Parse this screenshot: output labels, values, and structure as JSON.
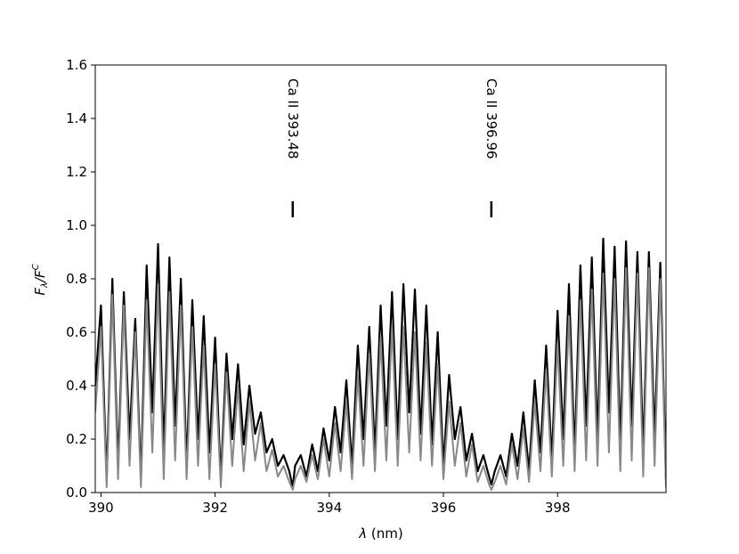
{
  "chart_data": {
    "type": "line",
    "title": "",
    "xlabel_italic": "λ",
    "xlabel_rest": " (nm)",
    "ylabel_f": "F",
    "ylabel_sub": "λ",
    "ylabel_slash": "/F",
    "ylabel_sup": "C",
    "xlim": [
      389.9,
      399.9
    ],
    "ylim": [
      0.0,
      1.6
    ],
    "xticks": [
      390,
      392,
      394,
      396,
      398
    ],
    "xtick_labels": [
      "390",
      "392",
      "394",
      "396",
      "398"
    ],
    "yticks": [
      0.0,
      0.2,
      0.4,
      0.6,
      0.8,
      1.0,
      1.2,
      1.4,
      1.6
    ],
    "ytick_labels": [
      "0.0",
      "0.2",
      "0.4",
      "0.6",
      "0.8",
      "1.0",
      "1.2",
      "1.4",
      "1.6"
    ],
    "grid": false,
    "legend": "none",
    "line_markers": [
      {
        "label": "Ca II 393.48",
        "x": 393.36,
        "y_from": 1.03,
        "y_to": 1.09,
        "label_y": 1.55
      },
      {
        "label": "Ca II 396.96",
        "x": 396.84,
        "y_from": 1.03,
        "y_to": 1.09,
        "label_y": 1.55
      }
    ],
    "series": [
      {
        "color": "#000000",
        "x": [
          389.9,
          390.0,
          390.1,
          390.2,
          390.3,
          390.4,
          390.5,
          390.6,
          390.7,
          390.8,
          390.9,
          391.0,
          391.1,
          391.2,
          391.3,
          391.4,
          391.5,
          391.6,
          391.7,
          391.8,
          391.9,
          392.0,
          392.1,
          392.2,
          392.3,
          392.4,
          392.5,
          392.6,
          392.7,
          392.8,
          392.9,
          393.0,
          393.1,
          393.2,
          393.3,
          393.36,
          393.4,
          393.5,
          393.6,
          393.7,
          393.8,
          393.9,
          394.0,
          394.1,
          394.2,
          394.3,
          394.4,
          394.5,
          394.6,
          394.7,
          394.8,
          394.9,
          395.0,
          395.1,
          395.2,
          395.3,
          395.4,
          395.5,
          395.6,
          395.7,
          395.8,
          395.9,
          396.0,
          396.1,
          396.2,
          396.3,
          396.4,
          396.5,
          396.6,
          396.7,
          396.8,
          396.84,
          396.9,
          397.0,
          397.1,
          397.2,
          397.3,
          397.4,
          397.5,
          397.6,
          397.7,
          397.8,
          397.9,
          398.0,
          398.1,
          398.2,
          398.3,
          398.4,
          398.5,
          398.6,
          398.7,
          398.8,
          398.9,
          399.0,
          399.1,
          399.2,
          399.3,
          399.4,
          399.5,
          399.6,
          399.7,
          399.8,
          399.9
        ],
        "y": [
          0.4,
          0.7,
          0.05,
          0.8,
          0.1,
          0.75,
          0.2,
          0.65,
          0.05,
          0.85,
          0.3,
          0.93,
          0.15,
          0.88,
          0.25,
          0.8,
          0.1,
          0.72,
          0.2,
          0.66,
          0.15,
          0.58,
          0.05,
          0.52,
          0.2,
          0.48,
          0.18,
          0.4,
          0.22,
          0.3,
          0.15,
          0.2,
          0.1,
          0.14,
          0.08,
          0.02,
          0.1,
          0.14,
          0.06,
          0.18,
          0.08,
          0.24,
          0.12,
          0.32,
          0.15,
          0.42,
          0.1,
          0.55,
          0.2,
          0.62,
          0.15,
          0.7,
          0.25,
          0.75,
          0.2,
          0.78,
          0.3,
          0.76,
          0.22,
          0.7,
          0.18,
          0.6,
          0.1,
          0.44,
          0.2,
          0.32,
          0.12,
          0.22,
          0.08,
          0.14,
          0.06,
          0.03,
          0.08,
          0.14,
          0.06,
          0.22,
          0.1,
          0.3,
          0.08,
          0.42,
          0.15,
          0.55,
          0.12,
          0.68,
          0.2,
          0.78,
          0.15,
          0.85,
          0.25,
          0.88,
          0.2,
          0.95,
          0.3,
          0.92,
          0.18,
          0.94,
          0.25,
          0.9,
          0.15,
          0.9,
          0.2,
          0.86,
          0.05
        ]
      },
      {
        "color": "#888888",
        "x": [
          389.9,
          390.0,
          390.1,
          390.2,
          390.3,
          390.4,
          390.5,
          390.6,
          390.7,
          390.8,
          390.9,
          391.0,
          391.1,
          391.2,
          391.3,
          391.4,
          391.5,
          391.6,
          391.7,
          391.8,
          391.9,
          392.0,
          392.1,
          392.2,
          392.3,
          392.4,
          392.5,
          392.6,
          392.7,
          392.8,
          392.9,
          393.0,
          393.1,
          393.2,
          393.3,
          393.36,
          393.4,
          393.5,
          393.6,
          393.7,
          393.8,
          393.9,
          394.0,
          394.1,
          394.2,
          394.3,
          394.4,
          394.5,
          394.6,
          394.7,
          394.8,
          394.9,
          395.0,
          395.1,
          395.2,
          395.3,
          395.4,
          395.5,
          395.6,
          395.7,
          395.8,
          395.9,
          396.0,
          396.1,
          396.2,
          396.3,
          396.4,
          396.5,
          396.6,
          396.7,
          396.8,
          396.84,
          396.9,
          397.0,
          397.1,
          397.2,
          397.3,
          397.4,
          397.5,
          397.6,
          397.7,
          397.8,
          397.9,
          398.0,
          398.1,
          398.2,
          398.3,
          398.4,
          398.5,
          398.6,
          398.7,
          398.8,
          398.9,
          399.0,
          399.1,
          399.2,
          399.3,
          399.4,
          399.5,
          399.6,
          399.7,
          399.8,
          399.9
        ],
        "y": [
          0.3,
          0.62,
          0.02,
          0.74,
          0.05,
          0.7,
          0.1,
          0.6,
          0.02,
          0.72,
          0.15,
          0.78,
          0.05,
          0.75,
          0.12,
          0.7,
          0.05,
          0.62,
          0.1,
          0.55,
          0.05,
          0.48,
          0.02,
          0.45,
          0.1,
          0.4,
          0.08,
          0.34,
          0.12,
          0.26,
          0.08,
          0.16,
          0.06,
          0.1,
          0.04,
          0.01,
          0.05,
          0.1,
          0.04,
          0.14,
          0.05,
          0.2,
          0.06,
          0.26,
          0.08,
          0.34,
          0.05,
          0.44,
          0.1,
          0.52,
          0.08,
          0.58,
          0.12,
          0.62,
          0.1,
          0.62,
          0.15,
          0.6,
          0.12,
          0.56,
          0.1,
          0.48,
          0.05,
          0.34,
          0.1,
          0.26,
          0.06,
          0.18,
          0.04,
          0.1,
          0.03,
          0.01,
          0.04,
          0.1,
          0.03,
          0.18,
          0.05,
          0.24,
          0.04,
          0.34,
          0.08,
          0.46,
          0.06,
          0.56,
          0.1,
          0.66,
          0.08,
          0.72,
          0.12,
          0.76,
          0.1,
          0.82,
          0.15,
          0.8,
          0.08,
          0.84,
          0.12,
          0.82,
          0.06,
          0.84,
          0.1,
          0.8,
          0.02
        ]
      }
    ]
  }
}
